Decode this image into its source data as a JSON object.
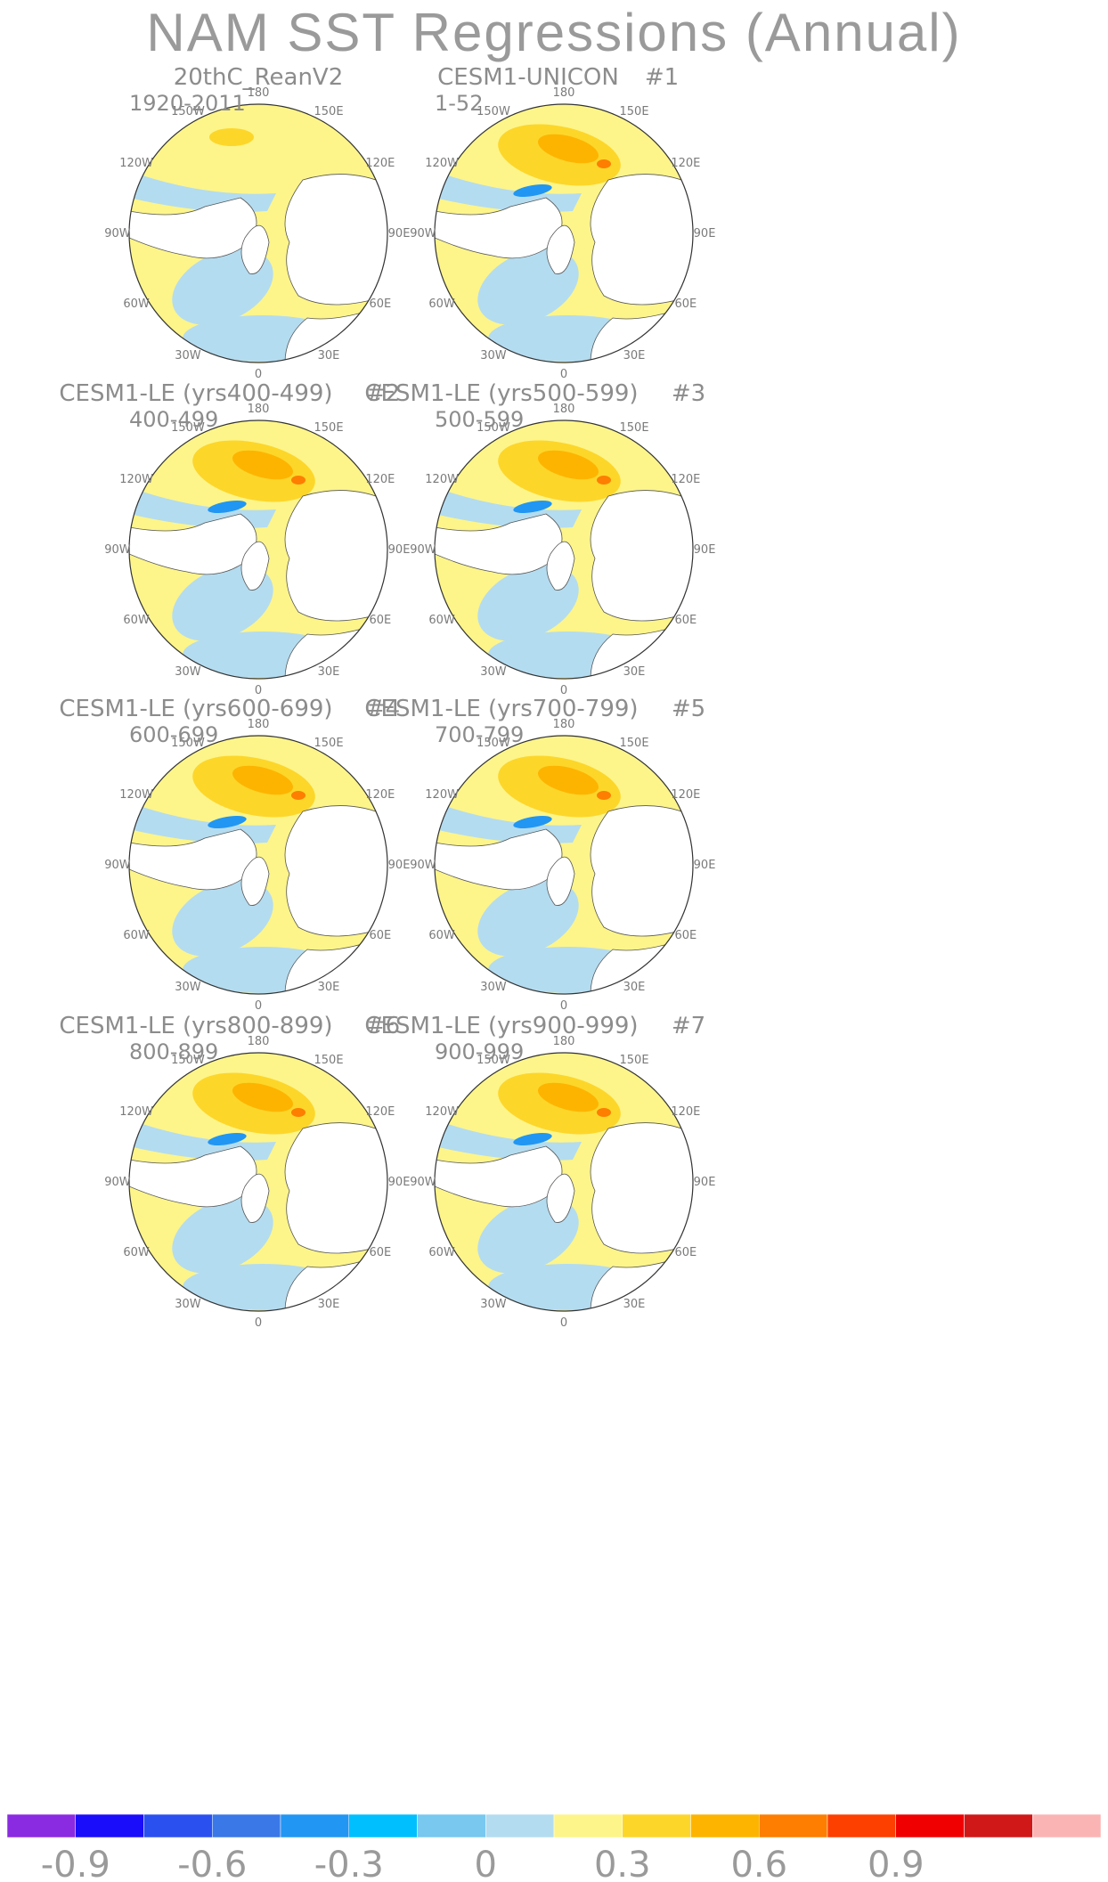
{
  "title": "NAM SST Regressions (Annual)",
  "panels": [
    {
      "title": "20thC_ReanV2",
      "number": "",
      "years": "1920-2011"
    },
    {
      "title": "CESM1-UNICON",
      "number": "#1",
      "years": "1-52"
    },
    {
      "title": "CESM1-LE (yrs400-499)",
      "number": "#2",
      "years": "400-499"
    },
    {
      "title": "CESM1-LE (yrs500-599)",
      "number": "#3",
      "years": "500-599"
    },
    {
      "title": "CESM1-LE (yrs600-699)",
      "number": "#4",
      "years": "600-699"
    },
    {
      "title": "CESM1-LE (yrs700-799)",
      "number": "#5",
      "years": "700-799"
    },
    {
      "title": "CESM1-LE (yrs800-899)",
      "number": "#6",
      "years": "800-899"
    },
    {
      "title": "CESM1-LE (yrs900-999)",
      "number": "#7",
      "years": "900-999"
    }
  ],
  "longitude_labels": {
    "top": "180",
    "bottom": "0",
    "upper_left": "150W",
    "upper_right": "150E",
    "left_upper": "120W",
    "right_upper": "120E",
    "left": "90W",
    "right": "90E",
    "left_lower": "60W",
    "right_lower": "60E",
    "lower_left": "30W",
    "lower_right": "30E"
  },
  "colorbar": {
    "colors": [
      "#8a2be2",
      "#1a0dfa",
      "#2a50f0",
      "#3a78e8",
      "#2196f3",
      "#00bfff",
      "#78c8f0",
      "#b4dcf0",
      "#fdf58a",
      "#fdd62a",
      "#fdb400",
      "#fd7e00",
      "#fd3f00",
      "#f00000",
      "#d01818",
      "#fbb4b4"
    ],
    "labels": [
      "-0.9",
      "-0.6",
      "-0.3",
      "0",
      "0.3",
      "0.6",
      "0.9"
    ]
  },
  "field_colors": {
    "positive_weak": "#fdf58a",
    "positive_mid": "#fdd62a",
    "positive_strong": "#fdb400",
    "negative_weak": "#b4dcf0",
    "negative_mid": "#78c8f0",
    "negative_strong": "#2196f3"
  }
}
